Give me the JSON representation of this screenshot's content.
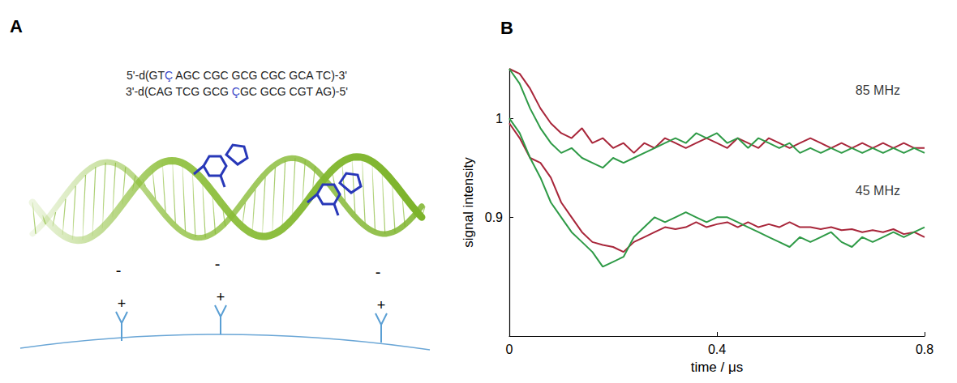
{
  "panel_a": {
    "label": "A",
    "sequence": [
      "5'-d(GTÇ AGC CGC GCG CGC GCA TC)-3'",
      "3'-d(CAG TCG GCG ÇGC GCG CGT AG)-5'"
    ],
    "highlight": "Ç",
    "dna_charges": [
      "-",
      "-",
      "-"
    ],
    "surface_charges": [
      "+",
      "+",
      "+"
    ]
  },
  "chart_data": {
    "panel": "B",
    "type": "line",
    "x_label": "time / μs",
    "y_label": "signal intensity",
    "x": [
      0,
      0.02,
      0.04,
      0.06,
      0.08,
      0.1,
      0.12,
      0.14,
      0.16,
      0.18,
      0.2,
      0.22,
      0.24,
      0.26,
      0.28,
      0.3,
      0.32,
      0.34,
      0.36,
      0.38,
      0.4,
      0.42,
      0.44,
      0.46,
      0.48,
      0.5,
      0.52,
      0.54,
      0.56,
      0.58,
      0.6,
      0.62,
      0.64,
      0.66,
      0.68,
      0.7,
      0.72,
      0.74,
      0.76,
      0.78,
      0.8
    ],
    "series": [
      {
        "color": "#a8263a",
        "values": [
          1.05,
          1.045,
          1.03,
          1.01,
          0.995,
          0.985,
          0.98,
          0.99,
          0.975,
          0.98,
          0.97,
          0.975,
          0.965,
          0.975,
          0.97,
          0.98,
          0.975,
          0.97,
          0.975,
          0.98,
          0.975,
          0.97,
          0.98,
          0.975,
          0.97,
          0.98,
          0.975,
          0.97,
          0.975,
          0.98,
          0.975,
          0.97,
          0.975,
          0.97,
          0.975,
          0.97,
          0.975,
          0.97,
          0.975,
          0.97,
          0.97
        ]
      },
      {
        "color": "#2e9a46",
        "values": [
          1.05,
          1.035,
          1.01,
          0.99,
          0.975,
          0.965,
          0.97,
          0.96,
          0.955,
          0.95,
          0.96,
          0.955,
          0.96,
          0.965,
          0.97,
          0.975,
          0.98,
          0.975,
          0.985,
          0.98,
          0.985,
          0.975,
          0.98,
          0.97,
          0.98,
          0.975,
          0.97,
          0.975,
          0.965,
          0.97,
          0.965,
          0.97,
          0.965,
          0.97,
          0.965,
          0.97,
          0.965,
          0.97,
          0.965,
          0.97,
          0.965
        ]
      },
      {
        "color": "#a8263a",
        "values": [
          0.995,
          0.98,
          0.96,
          0.955,
          0.94,
          0.915,
          0.9,
          0.885,
          0.875,
          0.872,
          0.87,
          0.865,
          0.875,
          0.88,
          0.885,
          0.89,
          0.888,
          0.89,
          0.895,
          0.89,
          0.893,
          0.895,
          0.89,
          0.895,
          0.89,
          0.893,
          0.89,
          0.895,
          0.89,
          0.89,
          0.888,
          0.89,
          0.887,
          0.888,
          0.885,
          0.887,
          0.885,
          0.888,
          0.883,
          0.885,
          0.88
        ]
      },
      {
        "color": "#2e9a46",
        "values": [
          1.0,
          0.985,
          0.96,
          0.94,
          0.915,
          0.9,
          0.885,
          0.875,
          0.865,
          0.85,
          0.855,
          0.86,
          0.88,
          0.89,
          0.9,
          0.895,
          0.9,
          0.905,
          0.9,
          0.895,
          0.9,
          0.9,
          0.895,
          0.89,
          0.885,
          0.88,
          0.875,
          0.87,
          0.88,
          0.875,
          0.88,
          0.885,
          0.875,
          0.87,
          0.88,
          0.875,
          0.88,
          0.885,
          0.88,
          0.885,
          0.89
        ]
      }
    ],
    "annotations": [
      {
        "text": "85 MHz",
        "x": 0.71,
        "y": 1.028
      },
      {
        "text": "45 MHz",
        "x": 0.71,
        "y": 0.927
      }
    ],
    "xlim": [
      0,
      0.8
    ],
    "ylim": [
      0.78,
      1.05
    ],
    "xticks": [
      0,
      0.4,
      0.8
    ],
    "yticks": [
      0.9,
      1
    ],
    "grid": false
  }
}
